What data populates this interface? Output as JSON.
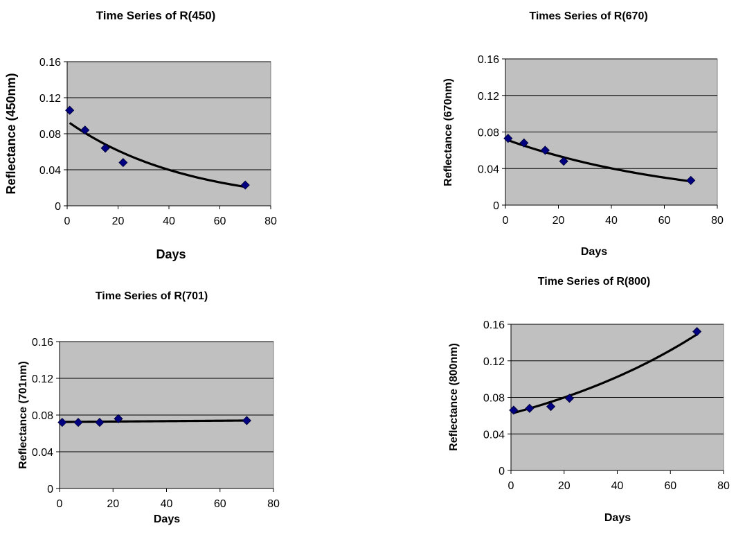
{
  "chart_data": [
    {
      "type": "scatter",
      "title": "Time Series of R(450)",
      "xlabel": "Days",
      "ylabel": "Reflectance (450nm)",
      "xlim": [
        0,
        80
      ],
      "ylim": [
        0,
        0.16
      ],
      "xticks": [
        "0",
        "20",
        "40",
        "60",
        "80"
      ],
      "yticks": [
        "0",
        "0.04",
        "0.08",
        "0.12",
        "0.16"
      ],
      "grid": "horizontal",
      "series": [
        {
          "x": [
            1,
            7,
            15,
            22,
            70
          ],
          "y": [
            0.106,
            0.084,
            0.064,
            0.048,
            0.023
          ],
          "color": "#000080",
          "marker": "diamond"
        }
      ],
      "trendline": {
        "type": "exponential",
        "x": [
          1,
          70
        ],
        "y": [
          0.092,
          0.021
        ],
        "color": "#000000"
      }
    },
    {
      "type": "scatter",
      "title": "Times Series of R(670)",
      "xlabel": "Days",
      "ylabel": "Reflectance (670nm)",
      "xlim": [
        0,
        80
      ],
      "ylim": [
        0,
        0.16
      ],
      "xticks": [
        "0",
        "20",
        "40",
        "60",
        "80"
      ],
      "yticks": [
        "0",
        "0.04",
        "0.08",
        "0.12",
        "0.16"
      ],
      "grid": "horizontal",
      "series": [
        {
          "x": [
            1,
            7,
            15,
            22,
            70
          ],
          "y": [
            0.073,
            0.068,
            0.06,
            0.048,
            0.027
          ],
          "color": "#000080",
          "marker": "diamond"
        }
      ],
      "trendline": {
        "type": "exponential",
        "x": [
          1,
          70
        ],
        "y": [
          0.071,
          0.026
        ],
        "color": "#000000"
      }
    },
    {
      "type": "scatter",
      "title": "Time Series of R(701)",
      "xlabel": "Days",
      "ylabel": "Reflectance (701nm)",
      "xlim": [
        0,
        80
      ],
      "ylim": [
        0,
        0.16
      ],
      "xticks": [
        "0",
        "20",
        "40",
        "60",
        "80"
      ],
      "yticks": [
        "0",
        "0.04",
        "0.08",
        "0.12",
        "0.16"
      ],
      "grid": "horizontal",
      "series": [
        {
          "x": [
            1,
            7,
            15,
            22,
            70
          ],
          "y": [
            0.072,
            0.072,
            0.072,
            0.076,
            0.074
          ],
          "color": "#000080",
          "marker": "diamond"
        }
      ],
      "trendline": {
        "type": "exponential",
        "x": [
          1,
          70
        ],
        "y": [
          0.0725,
          0.074
        ],
        "color": "#000000"
      }
    },
    {
      "type": "scatter",
      "title": "Time Series of R(800)",
      "xlabel": "Days",
      "ylabel": "Reflectance (800nm)",
      "xlim": [
        0,
        80
      ],
      "ylim": [
        0,
        0.16
      ],
      "xticks": [
        "0",
        "20",
        "40",
        "60",
        "80"
      ],
      "yticks": [
        "0",
        "0.04",
        "0.08",
        "0.12",
        "0.16"
      ],
      "grid": "horizontal",
      "series": [
        {
          "x": [
            1,
            7,
            15,
            22,
            70
          ],
          "y": [
            0.066,
            0.068,
            0.07,
            0.079,
            0.152
          ],
          "color": "#000080",
          "marker": "diamond"
        }
      ],
      "trendline": {
        "type": "exponential",
        "x": [
          1,
          70
        ],
        "y": [
          0.063,
          0.149
        ],
        "color": "#000000"
      }
    }
  ]
}
